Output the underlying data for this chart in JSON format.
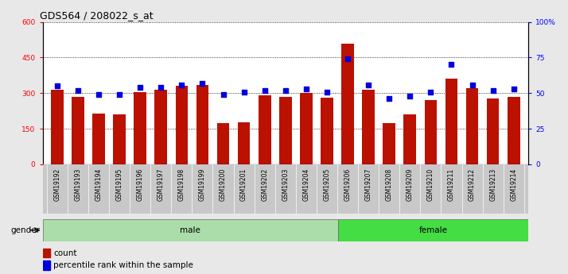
{
  "title": "GDS564 / 208022_s_at",
  "samples": [
    "GSM19192",
    "GSM19193",
    "GSM19194",
    "GSM19195",
    "GSM19196",
    "GSM19197",
    "GSM19198",
    "GSM19199",
    "GSM19200",
    "GSM19201",
    "GSM19202",
    "GSM19203",
    "GSM19204",
    "GSM19205",
    "GSM19206",
    "GSM19207",
    "GSM19208",
    "GSM19209",
    "GSM19210",
    "GSM19211",
    "GSM19212",
    "GSM19213",
    "GSM19214"
  ],
  "counts": [
    315,
    285,
    215,
    210,
    305,
    315,
    330,
    335,
    175,
    178,
    290,
    285,
    300,
    280,
    510,
    315,
    175,
    210,
    270,
    360,
    320,
    278,
    285
  ],
  "percentile_ranks": [
    55,
    52,
    49,
    49,
    54,
    54,
    56,
    57,
    49,
    51,
    52,
    52,
    53,
    51,
    74,
    56,
    46,
    48,
    51,
    70,
    56,
    52,
    53
  ],
  "gender_groups": [
    {
      "label": "male",
      "start": 0,
      "end": 14,
      "color": "#aaddaa"
    },
    {
      "label": "female",
      "start": 14,
      "end": 23,
      "color": "#44dd44"
    }
  ],
  "bar_color": "#bb1100",
  "dot_color": "#0000dd",
  "left_ylim": [
    0,
    600
  ],
  "right_ylim": [
    0,
    100
  ],
  "left_yticks": [
    0,
    150,
    300,
    450,
    600
  ],
  "right_yticks": [
    0,
    25,
    50,
    75,
    100
  ],
  "right_yticklabels": [
    "0",
    "25",
    "50",
    "75",
    "100%"
  ],
  "background_color": "#e8e8e8",
  "plot_bg_color": "#ffffff",
  "title_fontsize": 9,
  "tick_fontsize": 6.5,
  "xtick_bg_color": "#c8c8c8"
}
